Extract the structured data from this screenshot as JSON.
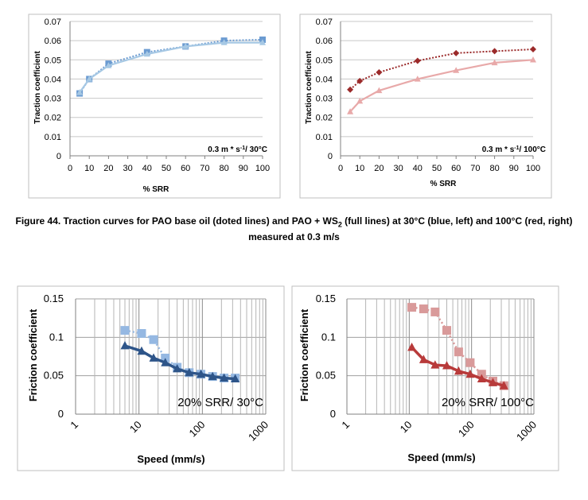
{
  "caption": {
    "line1_a": "Figure 44. Traction curves for PAO base oil (doted lines) and PAO + WS",
    "line1_sub": "2",
    "line1_b": " (full lines) at 30°C (blue, left) and 100°C (red, right)",
    "line2": "measured at 0.3 m/s"
  },
  "colors": {
    "blue_dotted": "#6b9bd1",
    "blue_full": "#a6c8e4",
    "red_dotted": "#9b2a2a",
    "red_full": "#e8a9a9",
    "blue_light": "#95b8e2",
    "blue_dark": "#2e5589",
    "red_light": "#d99a9a",
    "red_dark": "#b83a3a"
  },
  "chart_data": [
    {
      "type": "line",
      "xlabel": "% SRR",
      "ylabel": "Traction coefficient",
      "annotation": {
        "main": "0.3 m * s",
        "sup": "-1",
        "tail": "/  30°C"
      },
      "xlim": [
        0,
        100
      ],
      "ylim": [
        0,
        0.07
      ],
      "xticks": [
        "0",
        "10",
        "20",
        "30",
        "40",
        "50",
        "60",
        "70",
        "80",
        "90",
        "100"
      ],
      "yticks": [
        "0",
        "0.01",
        "0.02",
        "0.03",
        "0.04",
        "0.05",
        "0.06",
        "0.07"
      ],
      "grid": "horizontal",
      "series": [
        {
          "style": "dotted",
          "marker": "square",
          "x": [
            5,
            10,
            20,
            40,
            60,
            80,
            100
          ],
          "values": [
            0.0325,
            0.04,
            0.048,
            0.054,
            0.057,
            0.06,
            0.0605
          ]
        },
        {
          "style": "full",
          "marker": "triangle",
          "x": [
            5,
            10,
            20,
            40,
            60,
            80,
            100
          ],
          "values": [
            0.033,
            0.04,
            0.047,
            0.053,
            0.057,
            0.059,
            0.059
          ]
        }
      ]
    },
    {
      "type": "line",
      "xlabel": "% SRR",
      "ylabel": "Traction coefficient",
      "annotation": {
        "main": "0.3 m * s",
        "sup": "-1",
        "tail": "/  100°C"
      },
      "xlim": [
        0,
        100
      ],
      "ylim": [
        0,
        0.07
      ],
      "xticks": [
        "0",
        "10",
        "20",
        "30",
        "40",
        "50",
        "60",
        "70",
        "80",
        "90",
        "100"
      ],
      "yticks": [
        "0",
        "0.01",
        "0.02",
        "0.03",
        "0.04",
        "0.05",
        "0.06",
        "0.07"
      ],
      "grid": "horizontal",
      "series": [
        {
          "style": "dotted",
          "marker": "diamond",
          "x": [
            5,
            10,
            20,
            40,
            60,
            80,
            100
          ],
          "values": [
            0.0345,
            0.039,
            0.0435,
            0.0495,
            0.0535,
            0.0545,
            0.0555
          ]
        },
        {
          "style": "full",
          "marker": "triangle",
          "x": [
            5,
            10,
            20,
            40,
            60,
            80,
            100
          ],
          "values": [
            0.023,
            0.0285,
            0.034,
            0.04,
            0.0445,
            0.0485,
            0.05
          ]
        }
      ]
    },
    {
      "type": "scatter",
      "xlabel": "Speed   (mm/s)",
      "ylabel": "Friction coefficient",
      "annotation": "20% SRR/  30°C",
      "xscale": "log",
      "xlim": [
        1,
        1000
      ],
      "ylim": [
        0,
        0.15
      ],
      "xticks": [
        "1",
        "10",
        "100",
        "1000"
      ],
      "yticks": [
        "0",
        "0.05",
        "0.1",
        "0.15"
      ],
      "grid": "log-vertical",
      "series": [
        {
          "style": "dotted",
          "marker": "square",
          "x": [
            6,
            11,
            17,
            26,
            40,
            62,
            95,
            145,
            220,
            330
          ],
          "values": [
            0.109,
            0.105,
            0.097,
            0.073,
            0.061,
            0.054,
            0.052,
            0.049,
            0.047,
            0.047
          ]
        },
        {
          "style": "full",
          "marker": "triangle",
          "x": [
            6,
            11,
            17,
            26,
            40,
            62,
            95,
            145,
            220,
            330
          ],
          "values": [
            0.089,
            0.082,
            0.073,
            0.067,
            0.059,
            0.054,
            0.052,
            0.049,
            0.047,
            0.046
          ]
        }
      ]
    },
    {
      "type": "scatter",
      "xlabel": "Speed (mm/s)",
      "ylabel": "Friction coefficient",
      "annotation": "20% SRR/  100°C",
      "xscale": "log",
      "xlim": [
        1,
        1000
      ],
      "ylim": [
        0,
        0.15
      ],
      "xticks": [
        "1",
        "10",
        "100",
        "1000"
      ],
      "yticks": [
        "0",
        "0.05",
        "0.1",
        "0.15"
      ],
      "grid": "log-vertical",
      "series": [
        {
          "style": "dotted",
          "marker": "square",
          "x": [
            11,
            17,
            26,
            40,
            62,
            95,
            145,
            220,
            330
          ],
          "values": [
            0.139,
            0.137,
            0.133,
            0.109,
            0.081,
            0.067,
            0.052,
            0.043,
            0.037
          ]
        },
        {
          "style": "full",
          "marker": "triangle",
          "x": [
            11,
            17,
            26,
            40,
            62,
            95,
            145,
            220,
            330
          ],
          "values": [
            0.087,
            0.071,
            0.064,
            0.063,
            0.056,
            0.052,
            0.046,
            0.041,
            0.037
          ]
        }
      ]
    }
  ]
}
